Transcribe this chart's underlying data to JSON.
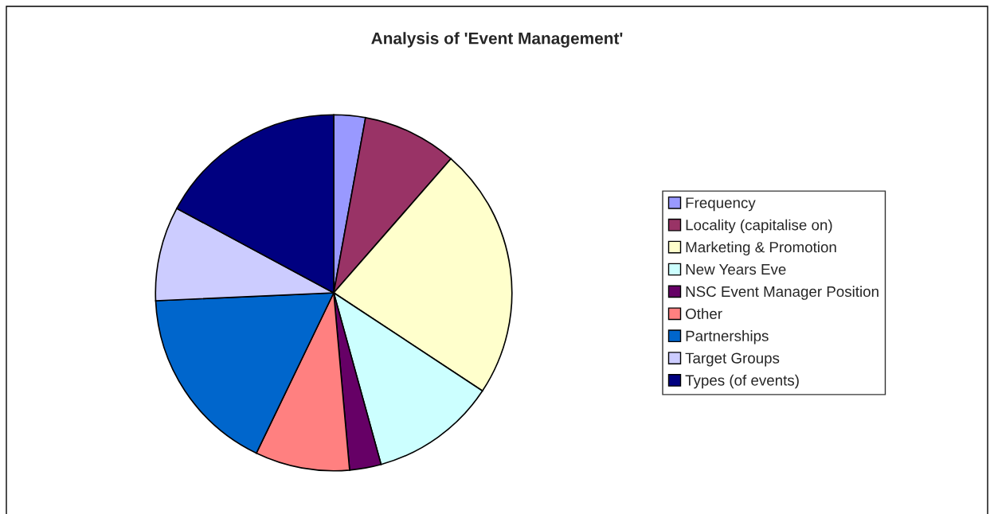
{
  "chart_data": {
    "type": "pie",
    "title": "Analysis of 'Event Management'",
    "categories": [
      "Frequency",
      "Locality (capitalise on)",
      "Marketing & Promotion",
      "New Years Eve",
      "NSC Event Manager Position",
      "Other",
      "Partnerships",
      "Target Groups",
      "Types (of events)"
    ],
    "values": [
      2.86,
      8.57,
      22.86,
      11.43,
      2.86,
      8.57,
      17.14,
      8.57,
      17.14
    ],
    "colors": [
      "#9999ff",
      "#993366",
      "#ffffcc",
      "#ccffff",
      "#660066",
      "#ff8080",
      "#0066cc",
      "#ccccff",
      "#000080"
    ],
    "legend": "right"
  }
}
